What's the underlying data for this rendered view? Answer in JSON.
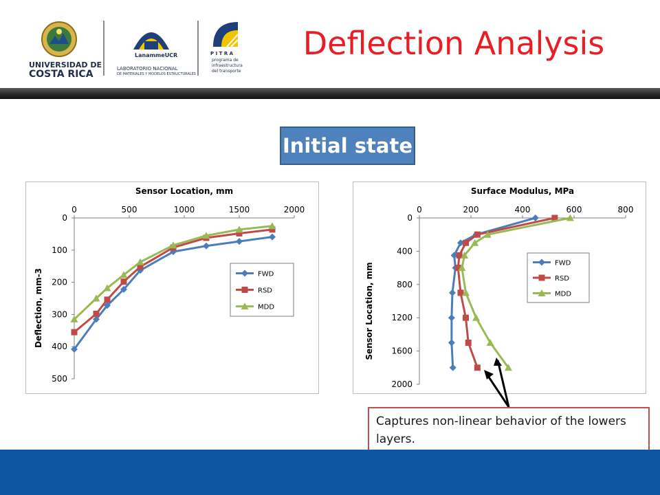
{
  "slide": {
    "title": "Deflection Analysis",
    "state_label": "Initial state",
    "caption": "Captures non-linear behavior of the lowers layers."
  },
  "logos": {
    "ucr_line1": "UNIVERSIDAD DE",
    "ucr_line2": "COSTA RICA",
    "lanamme_name": "LanammeUCR",
    "lanamme_line1": "LABORATORIO NACIONAL",
    "lanamme_line2": "DE MATERIALES Y MODELOS ESTRUCTURALES",
    "pitra_name": "P I T R A",
    "pitra_line1": "programa de",
    "pitra_line2": "infraestructura",
    "pitra_line3": "del transporte"
  },
  "colors": {
    "title": "#ea1c24",
    "FWD": "#4a7ebb",
    "RSD": "#be4b48",
    "MDD": "#98b954",
    "state_box": "#4f81bd",
    "caption_border": "#c0504d",
    "footer": "#0c56a2"
  },
  "chart_data": [
    {
      "type": "line",
      "title": "Sensor Location, mm",
      "xlabel": "Sensor Location, mm",
      "ylabel": "Deflection, mm-3",
      "x_axis_position": "top",
      "y_inverted": true,
      "xlim": [
        0,
        2000
      ],
      "ylim": [
        0,
        500
      ],
      "xticks": [
        "0",
        "500",
        "1000",
        "1500",
        "2000"
      ],
      "yticks": [
        "0",
        "100",
        "200",
        "300",
        "400",
        "500"
      ],
      "xtick_values": [
        0,
        500,
        1000,
        1500,
        2000
      ],
      "ytick_values": [
        0,
        100,
        200,
        300,
        400,
        500
      ],
      "legend_position": "right",
      "series": [
        {
          "name": "FWD",
          "marker": "diamond",
          "x": [
            0,
            200,
            300,
            450,
            600,
            900,
            1200,
            1500,
            1800
          ],
          "y": [
            408,
            315,
            272,
            222,
            163,
            105,
            87,
            73,
            59
          ]
        },
        {
          "name": "RSD",
          "marker": "square",
          "x": [
            0,
            200,
            300,
            450,
            600,
            900,
            1200,
            1500,
            1800
          ],
          "y": [
            355,
            298,
            254,
            198,
            152,
            92,
            62,
            48,
            36
          ]
        },
        {
          "name": "MDD",
          "marker": "triangle",
          "x": [
            0,
            200,
            300,
            450,
            600,
            900,
            1200,
            1500,
            1800
          ],
          "y": [
            315,
            250,
            218,
            177,
            137,
            85,
            55,
            36,
            25
          ]
        }
      ]
    },
    {
      "type": "line",
      "title": "Surface Modulus, MPa",
      "xlabel": "Surface Modulus, MPa",
      "ylabel": "Sensor Location, mm",
      "x_axis_position": "top",
      "y_inverted": true,
      "xlim": [
        0,
        800
      ],
      "ylim": [
        0,
        2000
      ],
      "xticks": [
        "0",
        "200",
        "400",
        "600",
        "800"
      ],
      "yticks": [
        "0",
        "400",
        "800",
        "1200",
        "1600",
        "2000"
      ],
      "xtick_values": [
        0,
        200,
        400,
        600,
        800
      ],
      "ytick_values": [
        0,
        400,
        800,
        1200,
        1600,
        2000
      ],
      "legend_position": "right",
      "series": [
        {
          "name": "FWD",
          "marker": "diamond",
          "x": [
            450,
            220,
            160,
            135,
            140,
            128,
            125,
            125,
            130
          ],
          "y": [
            0,
            200,
            300,
            450,
            600,
            900,
            1200,
            1500,
            1800
          ]
        },
        {
          "name": "RSD",
          "marker": "square",
          "x": [
            525,
            225,
            180,
            155,
            150,
            160,
            180,
            190,
            225
          ],
          "y": [
            0,
            200,
            300,
            450,
            600,
            900,
            1200,
            1500,
            1800
          ]
        },
        {
          "name": "MDD",
          "marker": "triangle",
          "x": [
            585,
            265,
            215,
            175,
            165,
            180,
            220,
            275,
            345
          ],
          "y": [
            0,
            200,
            300,
            450,
            600,
            900,
            1200,
            1500,
            1800
          ]
        }
      ]
    }
  ]
}
